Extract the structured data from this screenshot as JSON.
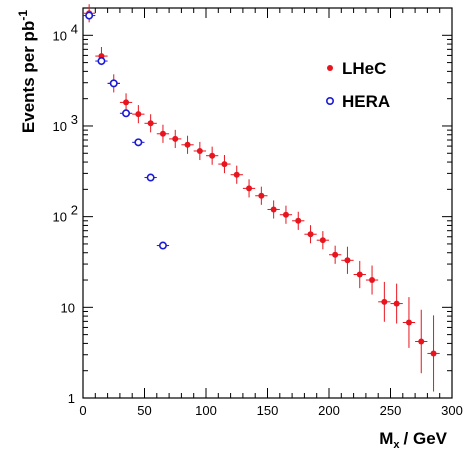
{
  "chart_data": {
    "type": "scatter",
    "xlabel": "M",
    "xlabel_sub": "x",
    "xlabel_unit": "/ GeV",
    "ylabel": "Events per pb",
    "ylabel_sup": "-1",
    "xlim": [
      0,
      300
    ],
    "ylim": [
      1,
      20000
    ],
    "yscale": "log",
    "grid": false,
    "legend_position": "top-right",
    "x_ticks": [
      0,
      50,
      100,
      150,
      200,
      250,
      300
    ],
    "x_tick_labels": [
      "0",
      "50",
      "100",
      "150",
      "200",
      "250",
      "300"
    ],
    "y_ticks": [
      1,
      10,
      100,
      1000,
      10000
    ],
    "y_tick_labels": [
      {
        "base": "1",
        "exp": ""
      },
      {
        "base": "10",
        "exp": ""
      },
      {
        "base": "10",
        "exp": "2"
      },
      {
        "base": "10",
        "exp": "3"
      },
      {
        "base": "10",
        "exp": "4"
      }
    ],
    "series": [
      {
        "name": "LHeC",
        "color": "#e8141e",
        "marker": "filled-circle",
        "x": [
          5,
          15,
          25,
          35,
          45,
          55,
          65,
          75,
          85,
          95,
          105,
          115,
          125,
          135,
          145,
          155,
          165,
          175,
          185,
          195,
          205,
          215,
          225,
          235,
          245,
          255,
          265,
          275,
          285
        ],
        "y": [
          17500,
          5900,
          2950,
          1820,
          1350,
          1070,
          820,
          720,
          620,
          530,
          470,
          380,
          290,
          205,
          170,
          120,
          105,
          90,
          64,
          55,
          38,
          33,
          23,
          20,
          11.5,
          11,
          6.8,
          4.2,
          3.1
        ],
        "y_err": [
          0.1,
          0.1,
          0.1,
          0.1,
          0.1,
          0.1,
          0.1,
          0.1,
          0.1,
          0.1,
          0.1,
          0.1,
          0.1,
          0.1,
          0.1,
          0.1,
          0.1,
          0.1,
          0.1,
          0.1,
          0.1,
          0.15,
          0.15,
          0.16,
          0.22,
          0.22,
          0.28,
          0.35,
          0.42
        ],
        "y_err_units": "decades",
        "x_err": 5
      },
      {
        "name": "HERA",
        "color": "#1a1ad6",
        "marker": "open-circle",
        "x": [
          5,
          15,
          25,
          35,
          45,
          55,
          65
        ],
        "y": [
          16500,
          5200,
          2950,
          1380,
          660,
          270,
          48
        ],
        "x_err": 5
      }
    ]
  }
}
